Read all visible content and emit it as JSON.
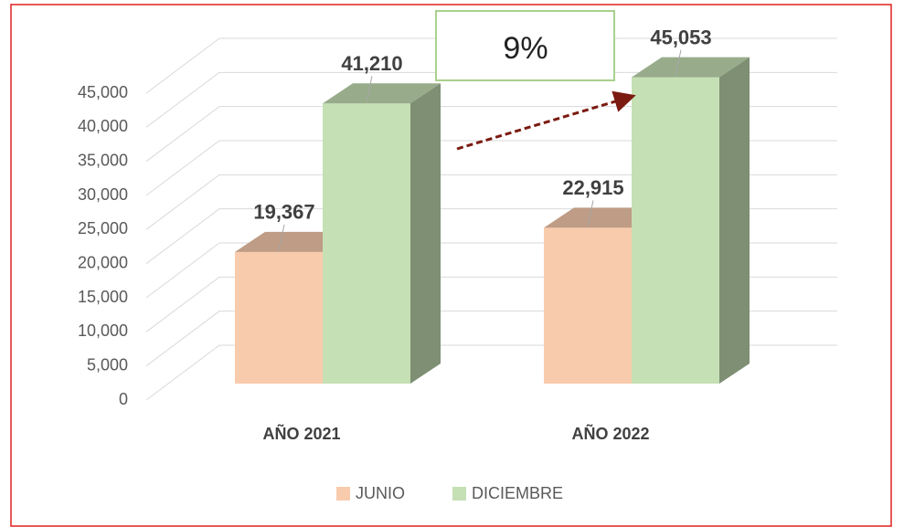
{
  "chart_data": {
    "type": "bar3d",
    "categories": [
      "AÑO 2021",
      "AÑO 2022"
    ],
    "series": [
      {
        "name": "JUNIO",
        "color": "#f8cbad",
        "values": [
          19367,
          22915
        ],
        "value_labels": [
          "19,367",
          "22,915"
        ]
      },
      {
        "name": "DICIEMBRE",
        "color": "#c5e0b4",
        "values": [
          41210,
          45053
        ],
        "value_labels": [
          "41,210",
          "45,053"
        ]
      }
    ],
    "ylim": [
      0,
      45000
    ],
    "yticks": [
      0,
      {
        "value": 5000,
        "label": "5,000"
      },
      {
        "value": 10000,
        "label": "10,000"
      },
      {
        "value": 15000,
        "label": "15,000"
      },
      {
        "value": 20000,
        "label": "20,000"
      },
      {
        "value": 25000,
        "label": "25,000"
      },
      {
        "value": 30000,
        "label": "30,000"
      },
      {
        "value": 35000,
        "label": "35,000"
      },
      {
        "value": 40000,
        "label": "40,000"
      },
      {
        "value": 45000,
        "label": "45,000"
      }
    ],
    "grid": true,
    "legend": "bottom",
    "annotation": "9%"
  }
}
